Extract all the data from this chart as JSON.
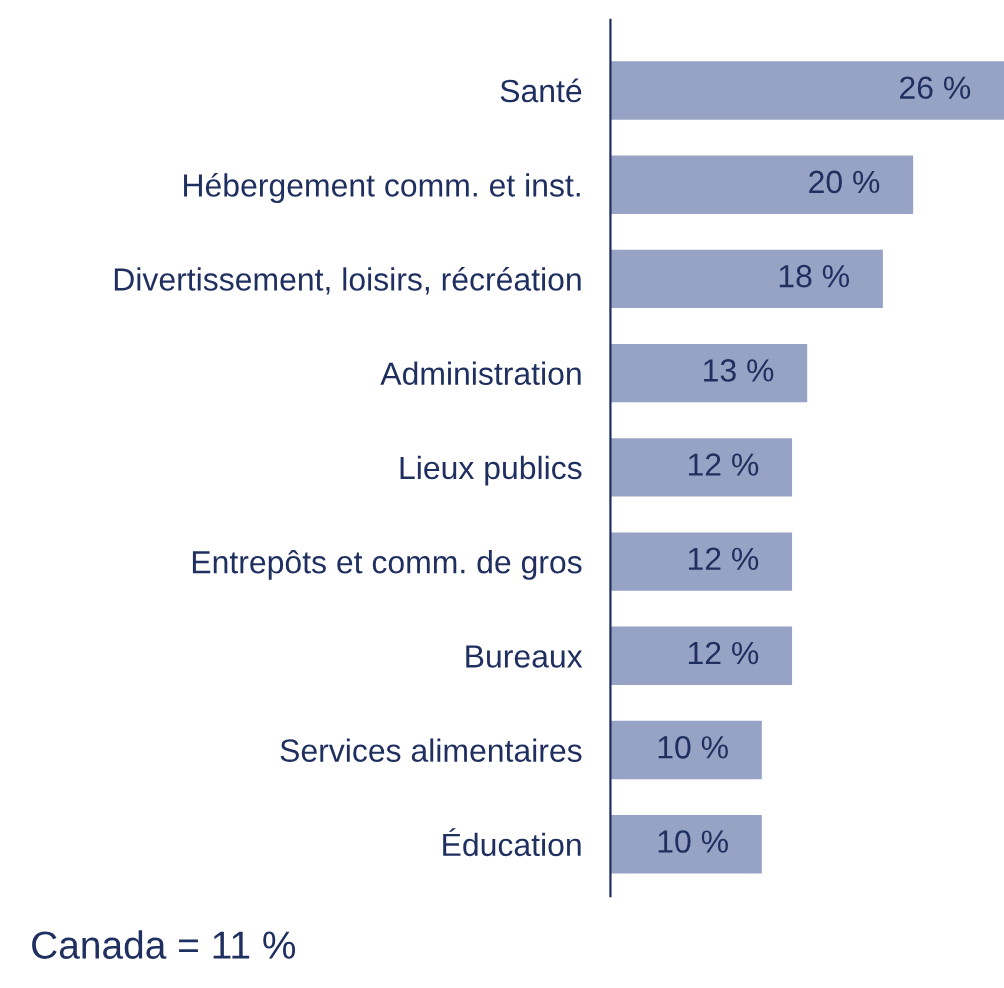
{
  "chart_data": {
    "type": "bar",
    "orientation": "horizontal",
    "categories": [
      "Santé",
      "Hébergement comm. et inst.",
      "Divertissement, loisirs, récréation",
      "Administration",
      "Lieux publics",
      "Entrepôts et comm. de gros",
      "Bureaux",
      "Services alimentaires",
      "Éducation"
    ],
    "values": [
      26,
      20,
      18,
      13,
      12,
      12,
      12,
      10,
      10
    ],
    "value_labels": [
      "26 %",
      "20 %",
      "18 %",
      "13 %",
      "12 %",
      "12 %",
      "12 %",
      "10 %",
      "10 %"
    ],
    "color": "#97a3c4",
    "xlim": [
      0,
      26
    ],
    "tick_labels": "y",
    "grid": false,
    "legend": false,
    "annotations": [
      "Canada = 11 %"
    ]
  }
}
